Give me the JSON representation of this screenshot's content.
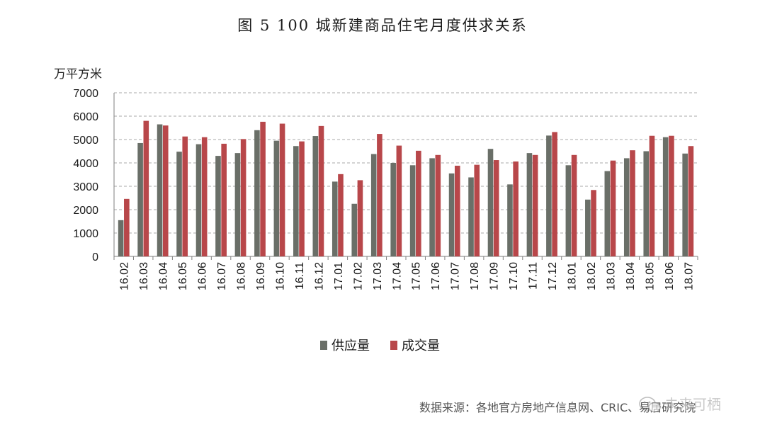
{
  "colors": {
    "supply": "#6a6f68",
    "deal": "#b8474a",
    "grid": "#a9a9a9",
    "axis": "#7f7f7f"
  },
  "chart_data": {
    "type": "bar",
    "title": "图 5   100 城新建商品住宅月度供求关系",
    "ylabel": "万平方米",
    "xlabel": "",
    "ylim": [
      0,
      7000
    ],
    "yticks": [
      0,
      1000,
      2000,
      3000,
      4000,
      5000,
      6000,
      7000
    ],
    "grid": true,
    "legend_position": "bottom",
    "categories": [
      "16.02",
      "16.03",
      "16.04",
      "16.05",
      "16.06",
      "16.07",
      "16.08",
      "16.09",
      "16.10",
      "16.11",
      "16.12",
      "17.01",
      "17.02",
      "17.03",
      "17.04",
      "17.05",
      "17.06",
      "17.07",
      "17.08",
      "17.09",
      "17.10",
      "17.11",
      "17.12",
      "18.01",
      "18.02",
      "18.03",
      "18.04",
      "18.05",
      "18.06",
      "18.07"
    ],
    "series": [
      {
        "name": "供应量",
        "values": [
          1550,
          4850,
          5650,
          4480,
          4800,
          4300,
          4420,
          5400,
          4950,
          4720,
          5150,
          3200,
          2250,
          4380,
          4000,
          3900,
          4200,
          3550,
          3380,
          4600,
          3080,
          4420,
          5170,
          3900,
          2430,
          3650,
          4200,
          4500,
          5100,
          4400
        ]
      },
      {
        "name": "成交量",
        "values": [
          2460,
          5800,
          5600,
          5130,
          5100,
          4820,
          5020,
          5760,
          5680,
          4920,
          5580,
          3520,
          3260,
          5240,
          4740,
          4520,
          4340,
          3880,
          3920,
          4120,
          4060,
          4340,
          5320,
          4340,
          2840,
          4100,
          4540,
          5160,
          5160,
          4720
        ]
      }
    ],
    "source": "数据来源：各地官方房地产信息网、CRIC、易居研究院",
    "watermark": "未来可栖"
  }
}
